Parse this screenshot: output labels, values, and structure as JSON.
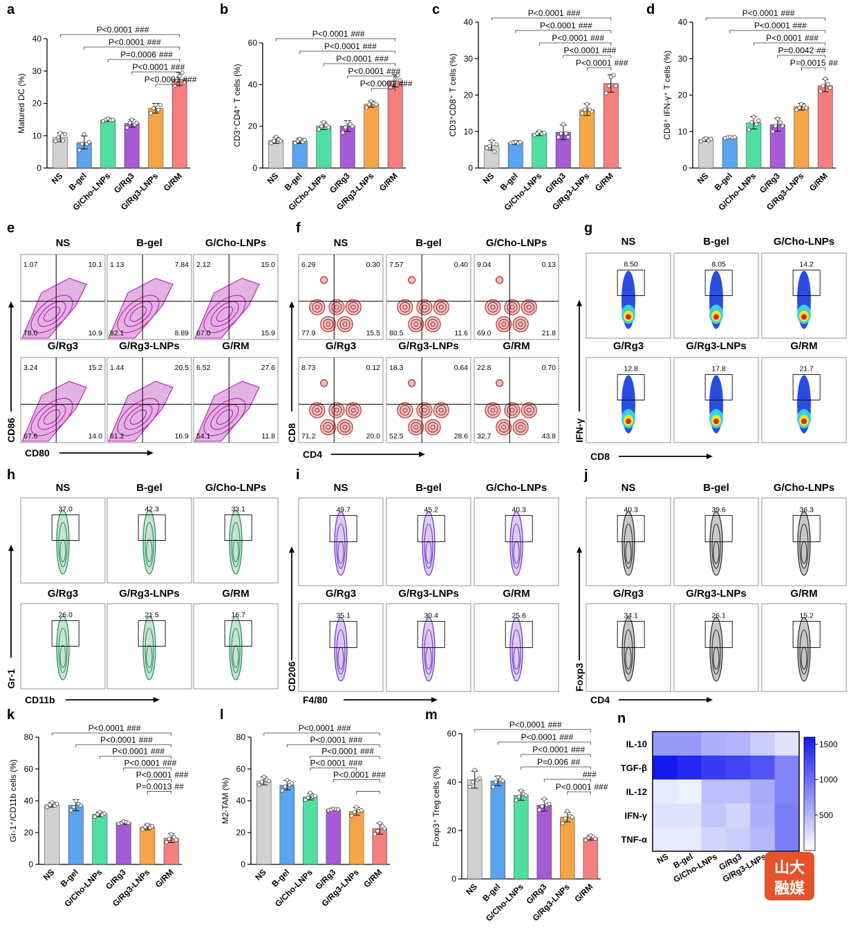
{
  "groups": [
    "NS",
    "B-gel",
    "G/Cho-LNPs",
    "G/Rg3",
    "G/Rg3-LNPs",
    "G/RM"
  ],
  "colors": [
    "#d1d1d1",
    "#5aa4f0",
    "#4fe0a1",
    "#a65ad6",
    "#f5a548",
    "#f57f7f"
  ],
  "chart_data": [
    {
      "type": "bar",
      "panel": "a",
      "ylabel": "Matured DC (%)",
      "ylim": [
        0,
        40
      ],
      "yticks": [
        0,
        10,
        20,
        30,
        40
      ],
      "values": [
        9.5,
        7.9,
        14.9,
        13.8,
        18.5,
        27.5
      ],
      "errors": [
        1.4,
        2.0,
        0.5,
        1.2,
        1.5,
        2.0
      ],
      "points": [
        [
          8.3,
          9.5,
          10.8,
          8.5,
          10.5
        ],
        [
          5.5,
          7.5,
          10.5,
          7.5,
          8.0
        ],
        [
          14.5,
          15.0,
          15.3,
          14.8,
          14.9
        ],
        [
          12.5,
          14.0,
          15.0,
          13.5,
          14.0
        ],
        [
          17.0,
          18.5,
          19.5,
          18.0,
          19.5
        ],
        [
          25.5,
          27.0,
          28.5,
          29.5,
          26.5
        ]
      ],
      "comparisons": [
        {
          "from": 0,
          "to": 5,
          "p": "P<0.0001",
          "s": "###"
        },
        {
          "from": 1,
          "to": 5,
          "p": "P<0.0001",
          "s": "###"
        },
        {
          "from": 2,
          "to": 5,
          "p": "P=0.0006",
          "s": "###"
        },
        {
          "from": 3,
          "to": 5,
          "p": "P<0.0001",
          "s": "###"
        },
        {
          "from": 4,
          "to": 5,
          "p": "P<0.0001",
          "s": "###"
        }
      ]
    },
    {
      "type": "bar",
      "panel": "b",
      "ylabel": "CD3⁺CD4⁺ T cells (%)",
      "ylim": [
        0,
        60
      ],
      "yticks": [
        0,
        20,
        40,
        60
      ],
      "values": [
        13.3,
        13.0,
        20.2,
        20.1,
        30.6,
        41.8
      ],
      "errors": [
        1.5,
        1.2,
        1.8,
        2.6,
        1.5,
        3.0
      ],
      "points": [
        [
          12,
          13,
          15,
          13.5,
          13
        ],
        [
          12,
          13,
          14,
          12.5,
          13.5
        ],
        [
          18.5,
          20,
          22,
          20.5,
          19.5
        ],
        [
          17,
          19.5,
          22,
          21,
          20
        ],
        [
          29,
          30.5,
          32,
          31,
          30.5
        ],
        [
          38.5,
          41,
          43,
          44.5,
          42
        ]
      ],
      "comparisons": [
        {
          "from": 0,
          "to": 5,
          "p": "P<0.0001",
          "s": "###"
        },
        {
          "from": 1,
          "to": 5,
          "p": "P<0.0001",
          "s": "###"
        },
        {
          "from": 2,
          "to": 5,
          "p": "P<0.0001",
          "s": "###"
        },
        {
          "from": 3,
          "to": 5,
          "p": "P<0.0001",
          "s": "###"
        },
        {
          "from": 4,
          "to": 5,
          "p": "P<0.0001",
          "s": "###"
        }
      ]
    },
    {
      "type": "bar",
      "panel": "c",
      "ylabel": "CD3⁺CD8⁺ T cells (%)",
      "ylim": [
        0,
        40
      ],
      "yticks": [
        0,
        10,
        20,
        30,
        40
      ],
      "values": [
        6.2,
        7.0,
        9.5,
        9.8,
        16.0,
        23.2
      ],
      "errors": [
        1.3,
        0.5,
        0.6,
        2.0,
        1.6,
        2.4
      ],
      "points": [
        [
          5.5,
          6,
          7.5,
          4.5,
          6.5
        ],
        [
          6.8,
          7,
          7.2,
          6.8,
          7.1
        ],
        [
          9.0,
          9.5,
          10.0,
          9.4,
          9.6
        ],
        [
          8.5,
          9.5,
          12,
          9.5,
          8.5
        ],
        [
          15,
          16,
          17.5,
          16,
          15.5
        ],
        [
          20.5,
          22.5,
          25,
          25.5,
          22.5
        ]
      ],
      "comparisons": [
        {
          "from": 0,
          "to": 5,
          "p": "P<0.0001",
          "s": "###"
        },
        {
          "from": 1,
          "to": 5,
          "p": "P<0.0001",
          "s": "###"
        },
        {
          "from": 2,
          "to": 5,
          "p": "P<0.0001",
          "s": "###"
        },
        {
          "from": 3,
          "to": 5,
          "p": "P<0.0001",
          "s": "###"
        },
        {
          "from": 4,
          "to": 5,
          "p": "P<0.0001",
          "s": "###"
        }
      ]
    },
    {
      "type": "bar",
      "panel": "d",
      "ylabel": "CD8⁺ IFN-γ⁺ T cells (%)",
      "ylim": [
        0,
        40
      ],
      "yticks": [
        0,
        10,
        20,
        30,
        40
      ],
      "values": [
        7.8,
        8.4,
        12.4,
        11.9,
        16.8,
        22.6
      ],
      "errors": [
        0.5,
        0.3,
        1.7,
        1.8,
        0.9,
        1.7
      ],
      "points": [
        [
          7.3,
          7.8,
          8.2,
          7.6,
          8.0
        ],
        [
          8.2,
          8.4,
          8.6,
          8.3,
          8.5
        ],
        [
          10.5,
          12.5,
          14,
          12,
          13
        ],
        [
          10,
          11.5,
          13.5,
          12.5,
          11.5
        ],
        [
          16,
          16.5,
          17.5,
          17,
          16.5
        ],
        [
          21,
          22.5,
          24.5,
          23,
          22
        ]
      ],
      "comparisons": [
        {
          "from": 0,
          "to": 5,
          "p": "P<0.0001",
          "s": "###"
        },
        {
          "from": 1,
          "to": 5,
          "p": "P<0.0001",
          "s": "###"
        },
        {
          "from": 2,
          "to": 5,
          "p": "P<0.0001",
          "s": "###"
        },
        {
          "from": 3,
          "to": 5,
          "p": "P=0.0042",
          "s": "##"
        },
        {
          "from": 4,
          "to": 5,
          "p": "P=0.0015",
          "s": "##"
        }
      ]
    },
    {
      "type": "bar",
      "panel": "k",
      "ylabel": "Gr-1⁺/CD11b cells (%)",
      "ylim": [
        0,
        80
      ],
      "yticks": [
        0,
        20,
        40,
        60,
        80
      ],
      "values": [
        37.5,
        37.2,
        31.5,
        26.2,
        23.5,
        16.5
      ],
      "errors": [
        1.5,
        3.5,
        1.5,
        1.0,
        1.8,
        2.8
      ],
      "points": [
        [
          36,
          37.5,
          39,
          37,
          38
        ],
        [
          34,
          36,
          40,
          38,
          37
        ],
        [
          30,
          31.5,
          33,
          31,
          32
        ],
        [
          25.5,
          26,
          27,
          26.5,
          26
        ],
        [
          22,
          23.5,
          25,
          23,
          24
        ],
        [
          14,
          16,
          19,
          17,
          15.5
        ]
      ],
      "comparisons": [
        {
          "from": 0,
          "to": 5,
          "p": "P<0.0001",
          "s": "###"
        },
        {
          "from": 1,
          "to": 5,
          "p": "P<0.0001",
          "s": "###"
        },
        {
          "from": 2,
          "to": 5,
          "p": "P<0.0001",
          "s": "###"
        },
        {
          "from": 3,
          "to": 5,
          "p": "P<0.0001",
          "s": "###"
        },
        {
          "from": 4,
          "to": 5,
          "p": "P<0.0001",
          "s": "###"
        },
        {
          "from": 4,
          "to": 5,
          "p": "P=0.0013",
          "s": "##"
        }
      ]
    },
    {
      "type": "bar",
      "panel": "l",
      "ylabel": "M2-TAM (%)",
      "ylim": [
        0,
        80
      ],
      "yticks": [
        0,
        20,
        40,
        60,
        80
      ],
      "values": [
        52.5,
        49.8,
        42.5,
        34.6,
        33.4,
        22.5
      ],
      "errors": [
        2.5,
        3.0,
        2.0,
        0.6,
        2.5,
        3.5
      ],
      "points": [
        [
          50,
          52,
          55,
          53,
          52.5
        ],
        [
          46.5,
          49,
          53,
          50,
          51
        ],
        [
          40.5,
          42,
          45,
          42.5,
          43
        ],
        [
          34,
          34.5,
          35,
          34.7,
          34.6
        ],
        [
          30.5,
          33,
          36,
          33.5,
          34
        ],
        [
          19,
          21,
          26,
          24,
          22.5
        ]
      ],
      "comparisons": [
        {
          "from": 0,
          "to": 5,
          "p": "P<0.0001",
          "s": "###"
        },
        {
          "from": 1,
          "to": 5,
          "p": "P<0.0001",
          "s": "###"
        },
        {
          "from": 2,
          "to": 5,
          "p": "P<0.0001",
          "s": "###"
        },
        {
          "from": 2,
          "to": 4,
          "p": "P<0.0001",
          "s": "###"
        },
        {
          "from": 3,
          "to": 5,
          "p": "P<0.0001",
          "s": "###"
        },
        {
          "from": 4,
          "to": 5,
          "p": "",
          "s": ""
        }
      ]
    },
    {
      "type": "bar",
      "panel": "m",
      "ylabel": "Foxp3⁺ Treg cells (%)",
      "ylim": [
        0,
        60
      ],
      "yticks": [
        0,
        20,
        40,
        60
      ],
      "values": [
        41.0,
        40.5,
        34.5,
        30.5,
        25.5,
        17.0
      ],
      "errors": [
        3.5,
        2.0,
        2.0,
        2.5,
        2.0,
        1.0
      ],
      "points": [
        [
          38,
          40,
          45,
          41,
          41.5
        ],
        [
          38,
          40,
          42,
          41,
          40.5
        ],
        [
          32.5,
          34,
          36.5,
          35,
          34.5
        ],
        [
          28.5,
          30,
          33,
          30.5,
          31
        ],
        [
          23,
          25,
          28,
          26,
          25.5
        ],
        [
          16,
          17,
          18,
          17.5,
          16.5
        ]
      ],
      "comparisons": [
        {
          "from": 0,
          "to": 5,
          "p": "P<0.0001",
          "s": "###"
        },
        {
          "from": 1,
          "to": 5,
          "p": "P<0.0001",
          "s": "###"
        },
        {
          "from": 2,
          "to": 5,
          "p": "P<0.0001",
          "s": "###"
        },
        {
          "from": 2,
          "to": 5,
          "p": "P=0.006",
          "s": "##"
        },
        {
          "from": 3,
          "to": 5,
          "p": "",
          "s": "###"
        },
        {
          "from": 4,
          "to": 5,
          "p": "P<0.0001",
          "s": "###"
        }
      ]
    },
    {
      "type": "heatmap",
      "panel": "n",
      "rows": [
        "IL-10",
        "TGF-β",
        "IL-12",
        "IFN-γ",
        "TNF-α"
      ],
      "columns": [
        "NS",
        "B-gel",
        "G/Cho-LNPs",
        "G/Rg3",
        "G/Rg3-LNPs",
        "G/RM"
      ],
      "values": [
        [
          700,
          700,
          550,
          520,
          350,
          200
        ],
        [
          1600,
          1500,
          1350,
          1300,
          1200,
          850
        ],
        [
          150,
          100,
          450,
          450,
          600,
          850
        ],
        [
          200,
          200,
          400,
          300,
          550,
          900
        ],
        [
          150,
          150,
          300,
          350,
          500,
          900
        ]
      ],
      "scale": [
        0,
        1600
      ],
      "colorbar_ticks": [
        500,
        1000,
        1500
      ]
    }
  ],
  "flow_panels": [
    {
      "panel": "e",
      "x_axis": "CD80",
      "y_axis": "CD86",
      "kind": "quadrant",
      "color": "#b21fb0",
      "titles": [
        "NS",
        "B-gel",
        "G/Cho-LNPs",
        "G/Rg3",
        "G/Rg3-LNPs",
        "G/RM"
      ],
      "quadrants": [
        [
          "1.07",
          "10.1",
          "78.0",
          "10.9"
        ],
        [
          "1.13",
          "7.84",
          "82.1",
          "8.89"
        ],
        [
          "2.12",
          "15.0",
          "67.0",
          "15.9"
        ],
        [
          "3.24",
          "15.2",
          "67.6",
          "14.0"
        ],
        [
          "1.44",
          "20.5",
          "61.2",
          "16.9"
        ],
        [
          "6.52",
          "27.6",
          "54.1",
          "11.8"
        ]
      ]
    },
    {
      "panel": "f",
      "x_axis": "CD4",
      "y_axis": "CD8",
      "kind": "quadrant",
      "color": "#b52020",
      "titles": [
        "NS",
        "B-gel",
        "G/Cho-LNPs",
        "G/Rg3",
        "G/Rg3-LNPs",
        "G/RM"
      ],
      "quadrants": [
        [
          "6.29",
          "0.30",
          "77.9",
          "15.5"
        ],
        [
          "7.57",
          "0.40",
          "80.5",
          "11.6"
        ],
        [
          "9.04",
          "0.13",
          "69.0",
          "21.8"
        ],
        [
          "8.73",
          "0.12",
          "71.2",
          "20.0"
        ],
        [
          "18.3",
          "0.64",
          "52.5",
          "28.6"
        ],
        [
          "22.8",
          "0.70",
          "32.7",
          "43.8"
        ]
      ]
    },
    {
      "panel": "g",
      "x_axis": "CD8",
      "y_axis": "IFN-γ",
      "kind": "gate",
      "color": "heat",
      "titles": [
        "NS",
        "B-gel",
        "G/Cho-LNPs",
        "G/Rg3",
        "G/Rg3-LNPs",
        "G/RM"
      ],
      "gates": [
        "8.50",
        "8.05",
        "14.2",
        "12.8",
        "17.8",
        "21.7"
      ]
    },
    {
      "panel": "h",
      "x_axis": "CD11b",
      "y_axis": "Gr-1",
      "kind": "gate",
      "color": "#1f8a4c",
      "titles": [
        "NS",
        "B-gel",
        "G/Cho-LNPs",
        "G/Rg3",
        "G/Rg3-LNPs",
        "G/RM"
      ],
      "gates": [
        "37.0",
        "42.3",
        "33.1",
        "26.0",
        "21.5",
        "16.7"
      ]
    },
    {
      "panel": "i",
      "x_axis": "F4/80",
      "y_axis": "CD206",
      "kind": "gate",
      "color": "#6a2ec4",
      "titles": [
        "NS",
        "B-gel",
        "G/Cho-LNPs",
        "G/Rg3",
        "G/Rg3-LNPs",
        "G/RM"
      ],
      "gates": [
        "49.7",
        "45.2",
        "40.3",
        "35.1",
        "30.4",
        "25.6"
      ]
    },
    {
      "panel": "j",
      "x_axis": "CD4",
      "y_axis": "Foxp3",
      "kind": "gate",
      "color": "#222222",
      "titles": [
        "NS",
        "B-gel",
        "G/Cho-LNPs",
        "G/Rg3",
        "G/Rg3-LNPs",
        "G/RM"
      ],
      "gates": [
        "40.3",
        "39.6",
        "36.3",
        "34.1",
        "26.1",
        "15.2"
      ]
    }
  ],
  "watermark": {
    "line1": "山大",
    "line2": "融媒"
  }
}
